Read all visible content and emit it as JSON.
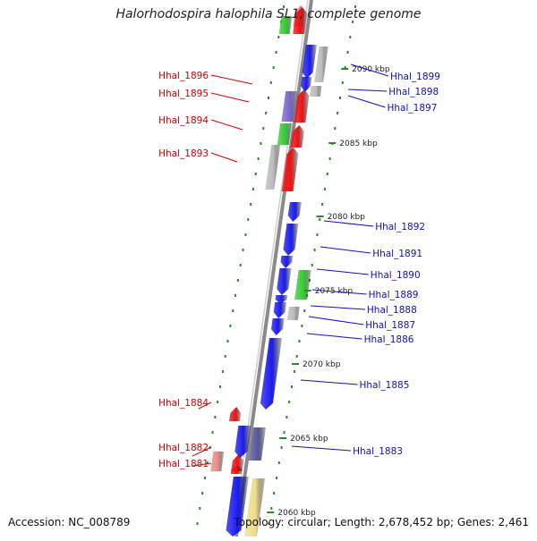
{
  "title": "Halorhodospira halophila SL1, complete genome",
  "footer": {
    "accession": "Accession: NC_008789",
    "summary": "Topology: circular; Length: 2,678,452 bp; Genes: 2,461"
  },
  "colors": {
    "background": "#ffffff",
    "backbone": "#8a8a8a",
    "tick_dots": "#2a8a2a",
    "left_label": "#d40000",
    "right_label": "#1010c0",
    "blue": "#1a1aee",
    "red": "#ee1111",
    "green": "#33cc33",
    "purple": "#7766cc",
    "gray": "#bbbbbb",
    "pink": "#ee8888",
    "yellow": "#eedd88",
    "indigo": "#555599"
  },
  "scale_ticks": [
    {
      "label": "2090 kbp"
    },
    {
      "label": "2085 kbp"
    },
    {
      "label": "2080 kbp"
    },
    {
      "label": "2075 kbp"
    },
    {
      "label": "2070 kbp"
    },
    {
      "label": "2065 kbp"
    },
    {
      "label": "2060 kbp"
    }
  ],
  "left_labels": [
    {
      "text": "Hhal_1896"
    },
    {
      "text": "Hhal_1895"
    },
    {
      "text": "Hhal_1894"
    },
    {
      "text": "Hhal_1893"
    },
    {
      "text": "Hhal_1884"
    },
    {
      "text": "Hhal_1882"
    },
    {
      "text": "Hhal_1881"
    }
  ],
  "right_labels": [
    {
      "text": "Hhal_1899"
    },
    {
      "text": "Hhal_1898"
    },
    {
      "text": "Hhal_1897"
    },
    {
      "text": "Hhal_1892"
    },
    {
      "text": "Hhal_1891"
    },
    {
      "text": "Hhal_1890"
    },
    {
      "text": "Hhal_1889"
    },
    {
      "text": "Hhal_1888"
    },
    {
      "text": "Hhal_1887"
    },
    {
      "text": "Hhal_1886"
    },
    {
      "text": "Hhal_1885"
    },
    {
      "text": "Hhal_1883"
    }
  ],
  "genes": [
    {
      "color": "pink",
      "dir": "up"
    },
    {
      "color": "green",
      "dir": "none"
    },
    {
      "color": "red",
      "dir": "up"
    },
    {
      "color": "blue",
      "dir": "down"
    },
    {
      "color": "gray",
      "dir": "none"
    },
    {
      "color": "blue",
      "dir": "down"
    },
    {
      "color": "gray",
      "dir": "none"
    },
    {
      "color": "purple",
      "dir": "none"
    },
    {
      "color": "red",
      "dir": "up"
    },
    {
      "color": "green",
      "dir": "none"
    },
    {
      "color": "red",
      "dir": "up"
    },
    {
      "color": "gray",
      "dir": "none"
    },
    {
      "color": "red",
      "dir": "up"
    },
    {
      "color": "blue",
      "dir": "down"
    },
    {
      "color": "blue",
      "dir": "down"
    },
    {
      "color": "blue",
      "dir": "down"
    },
    {
      "color": "blue",
      "dir": "down"
    },
    {
      "color": "green",
      "dir": "none"
    },
    {
      "color": "blue",
      "dir": "down"
    },
    {
      "color": "blue",
      "dir": "down"
    },
    {
      "color": "gray",
      "dir": "none"
    },
    {
      "color": "blue",
      "dir": "down"
    },
    {
      "color": "blue",
      "dir": "down"
    },
    {
      "color": "red",
      "dir": "up"
    },
    {
      "color": "blue",
      "dir": "down"
    },
    {
      "color": "indigo",
      "dir": "none"
    },
    {
      "color": "pink",
      "dir": "none"
    },
    {
      "color": "red",
      "dir": "up"
    },
    {
      "color": "red",
      "dir": "up"
    },
    {
      "color": "blue",
      "dir": "down"
    },
    {
      "color": "yellow",
      "dir": "none"
    }
  ]
}
